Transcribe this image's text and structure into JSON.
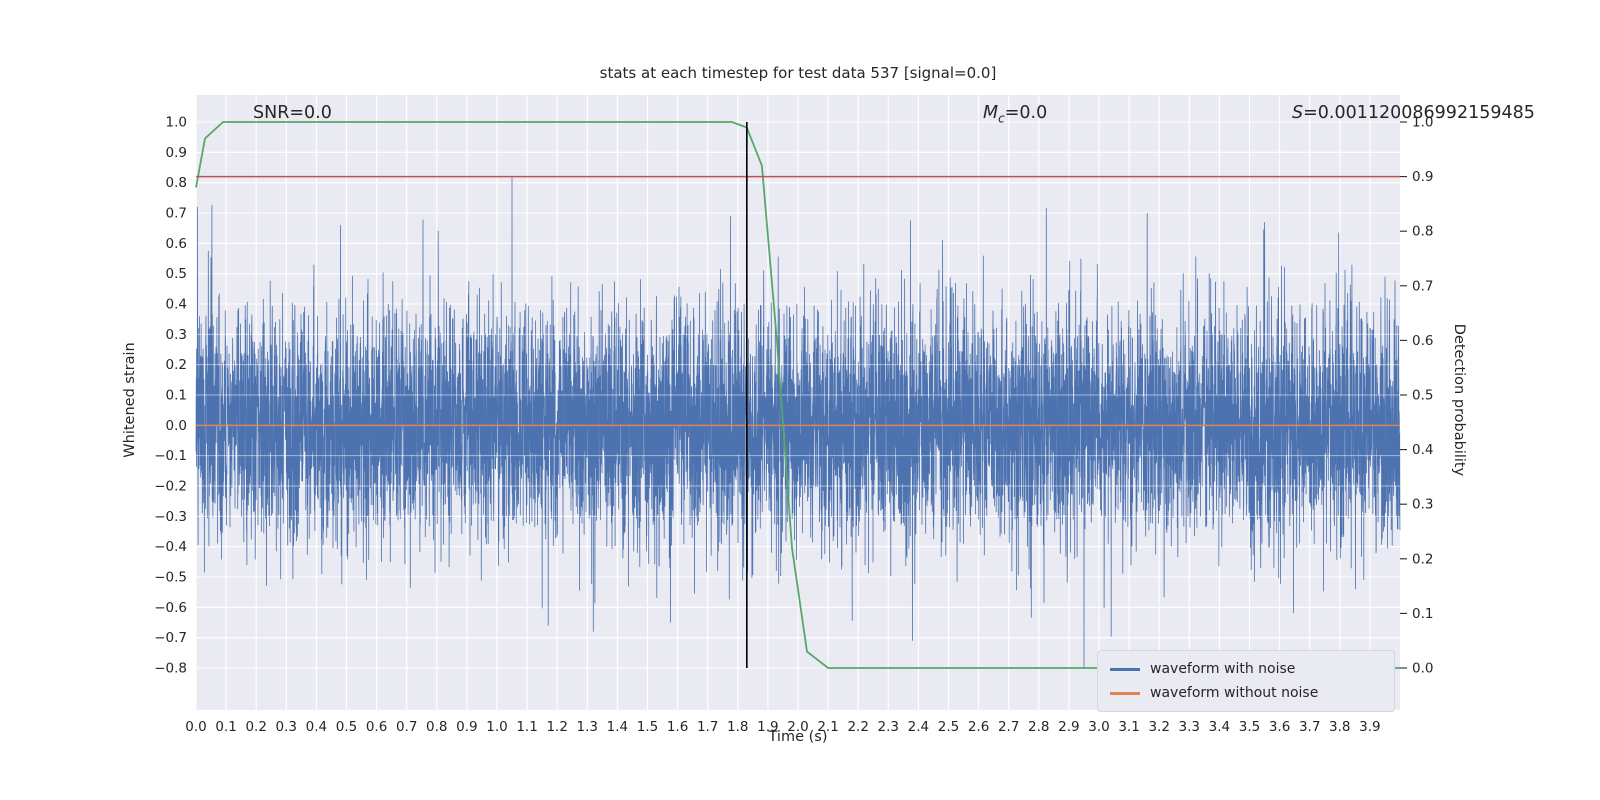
{
  "chart_data": {
    "type": "line",
    "title": "stats at each timestep for test data 537 [signal=0.0]",
    "xlabel": "Time (s)",
    "ylabel": "Whitened strain",
    "ylabel_right": "Detection probability",
    "xlim": [
      0.0,
      4.0
    ],
    "ylim_left": [
      -0.8,
      1.0
    ],
    "ylim_right": [
      0.0,
      1.0
    ],
    "grid": true,
    "legend_position": "lower right",
    "x_ticks": [
      "0.0",
      "0.1",
      "0.2",
      "0.3",
      "0.4",
      "0.5",
      "0.6",
      "0.7",
      "0.8",
      "0.9",
      "1.0",
      "1.1",
      "1.2",
      "1.3",
      "1.4",
      "1.5",
      "1.6",
      "1.7",
      "1.8",
      "1.9",
      "2.0",
      "2.1",
      "2.2",
      "2.3",
      "2.4",
      "2.5",
      "2.6",
      "2.7",
      "2.8",
      "2.9",
      "3.0",
      "3.1",
      "3.2",
      "3.3",
      "3.4",
      "3.5",
      "3.6",
      "3.7",
      "3.8",
      "3.9"
    ],
    "left_ticks": [
      "1.0",
      "0.9",
      "0.8",
      "0.7",
      "0.6",
      "0.5",
      "0.4",
      "0.3",
      "0.2",
      "0.1",
      "0.0",
      "−0.1",
      "−0.2",
      "−0.3",
      "−0.4",
      "−0.5",
      "−0.6",
      "−0.7",
      "−0.8"
    ],
    "right_ticks": [
      "1.0",
      "0.9",
      "0.8",
      "0.7",
      "0.6",
      "0.5",
      "0.4",
      "0.3",
      "0.2",
      "0.1",
      "0.0"
    ],
    "annotations": {
      "snr": "SNR=0.0",
      "mc_symbol": "M",
      "mc_sub": "c",
      "mc_value": "=0.0",
      "s_symbol": "S",
      "s_value": "=0.001120086992159485"
    },
    "series": [
      {
        "name": "waveform with noise",
        "color": "#4c72b0",
        "kind": "noise",
        "axis": "left",
        "seed": 537,
        "n": 8192,
        "std": 0.19,
        "spikes": [
          {
            "t": 0.005,
            "v": 0.72
          },
          {
            "t": 0.48,
            "v": 0.66
          },
          {
            "t": 1.05,
            "v": 0.82
          },
          {
            "t": 1.17,
            "v": -0.66
          },
          {
            "t": 1.32,
            "v": -0.68
          },
          {
            "t": 2.38,
            "v": -0.71
          },
          {
            "t": 2.95,
            "v": -0.8
          },
          {
            "t": 3.16,
            "v": 0.7
          },
          {
            "t": 3.55,
            "v": 0.67
          }
        ]
      },
      {
        "name": "waveform without noise",
        "color": "#dd8452",
        "kind": "hline",
        "axis": "left",
        "value": 0.0
      },
      {
        "name": "detection probability",
        "color": "#55a868",
        "kind": "line",
        "axis": "right",
        "x": [
          0.0,
          0.03,
          0.09,
          1.78,
          1.83,
          1.88,
          1.93,
          1.98,
          2.03,
          2.1,
          4.0
        ],
        "y": [
          0.88,
          0.97,
          1.0,
          1.0,
          0.99,
          0.92,
          0.6,
          0.22,
          0.03,
          0.0,
          0.0
        ]
      },
      {
        "name": "detection threshold",
        "color": "#c44e52",
        "kind": "hline",
        "axis": "right",
        "value": 0.9
      },
      {
        "name": "event time marker",
        "color": "#000000",
        "kind": "vline",
        "x": 1.83
      }
    ],
    "legend": [
      "waveform with noise",
      "waveform without noise"
    ],
    "style": {
      "plot_bg": "#eaeaf2",
      "grid": "#ffffff",
      "text": "#262626"
    }
  }
}
